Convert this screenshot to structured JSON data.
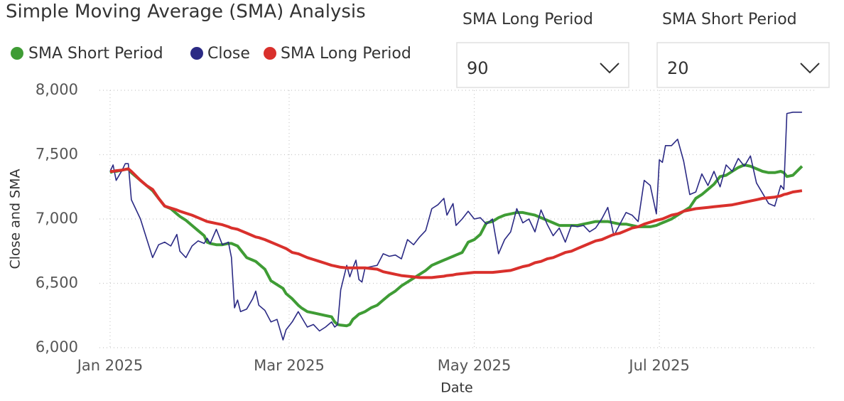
{
  "chart_data": {
    "type": "line",
    "title": "Simple Moving Average (SMA) Analysis",
    "x_label": "Date",
    "y_label": "Close and SMA",
    "x": [
      0,
      1,
      2,
      4,
      5,
      6,
      7,
      10,
      12,
      14,
      16,
      18,
      20,
      22,
      23,
      25,
      27,
      29,
      31,
      32,
      33,
      35,
      37,
      39,
      40,
      41,
      42,
      43,
      45,
      47,
      48,
      49,
      51,
      53,
      55,
      57,
      58,
      60,
      62,
      63,
      65,
      67,
      69,
      71,
      73,
      74,
      75,
      76,
      78,
      79,
      80,
      81,
      82,
      83,
      84,
      86,
      88,
      90,
      92,
      94,
      96,
      98,
      100,
      102,
      104,
      106,
      108,
      110,
      111,
      113,
      114,
      116,
      118,
      120,
      122,
      124,
      126,
      128,
      130,
      132,
      134,
      136,
      138,
      140,
      142,
      144,
      146,
      148,
      150,
      152,
      154,
      156,
      158,
      160,
      162,
      164,
      166,
      168,
      170,
      172,
      174,
      176,
      178,
      180,
      181,
      182,
      183,
      185,
      187,
      189,
      191,
      193,
      195,
      197,
      199,
      201,
      203,
      205,
      207,
      209,
      211,
      213,
      215,
      217,
      219,
      221,
      222,
      223,
      225,
      228
    ],
    "series": [
      {
        "name": "SMA Short Period",
        "color": "#3f9c35",
        "width": 4,
        "values": [
          7360,
          7370,
          7370,
          7380,
          7385,
          7390,
          7360,
          7300,
          7260,
          7220,
          7160,
          7100,
          7080,
          7040,
          7020,
          6990,
          6950,
          6910,
          6870,
          6820,
          6810,
          6800,
          6800,
          6810,
          6810,
          6800,
          6790,
          6760,
          6700,
          6680,
          6670,
          6650,
          6610,
          6520,
          6490,
          6460,
          6420,
          6380,
          6330,
          6310,
          6280,
          6270,
          6260,
          6250,
          6240,
          6200,
          6180,
          6175,
          6170,
          6180,
          6220,
          6240,
          6260,
          6270,
          6280,
          6310,
          6330,
          6370,
          6410,
          6440,
          6480,
          6510,
          6540,
          6570,
          6600,
          6640,
          6660,
          6680,
          6690,
          6710,
          6720,
          6740,
          6820,
          6840,
          6880,
          6970,
          6980,
          7010,
          7030,
          7040,
          7050,
          7050,
          7040,
          7030,
          7010,
          6990,
          6970,
          6950,
          6950,
          6950,
          6950,
          6960,
          6970,
          6980,
          6980,
          6980,
          6970,
          6960,
          6960,
          6950,
          6940,
          6940,
          6940,
          6950,
          6960,
          6970,
          6980,
          7000,
          7030,
          7060,
          7090,
          7160,
          7190,
          7230,
          7270,
          7330,
          7340,
          7370,
          7400,
          7420,
          7410,
          7390,
          7370,
          7360,
          7360,
          7370,
          7360,
          7330,
          7340,
          7410
        ]
      },
      {
        "name": "Close",
        "color": "#2b2a84",
        "width": 1.6,
        "values": [
          7370,
          7420,
          7300,
          7380,
          7430,
          7430,
          7150,
          7000,
          6850,
          6700,
          6800,
          6820,
          6790,
          6880,
          6750,
          6700,
          6790,
          6830,
          6810,
          6850,
          6810,
          6920,
          6800,
          6820,
          6700,
          6310,
          6370,
          6280,
          6300,
          6380,
          6440,
          6330,
          6290,
          6200,
          6220,
          6060,
          6140,
          6200,
          6280,
          6240,
          6160,
          6180,
          6130,
          6160,
          6200,
          6160,
          6180,
          6450,
          6640,
          6550,
          6620,
          6680,
          6530,
          6510,
          6620,
          6630,
          6640,
          6730,
          6710,
          6720,
          6690,
          6840,
          6800,
          6860,
          6910,
          7080,
          7110,
          7160,
          7030,
          7120,
          6950,
          7000,
          7060,
          7000,
          7010,
          6960,
          7000,
          6730,
          6840,
          6900,
          7080,
          6970,
          7000,
          6900,
          7070,
          6960,
          6870,
          6930,
          6820,
          6950,
          6940,
          6950,
          6900,
          6930,
          7000,
          7090,
          6870,
          6960,
          7050,
          7030,
          6980,
          7300,
          7260,
          7040,
          7460,
          7440,
          7570,
          7570,
          7620,
          7450,
          7190,
          7210,
          7350,
          7260,
          7370,
          7250,
          7420,
          7370,
          7470,
          7410,
          7490,
          7280,
          7200,
          7120,
          7100,
          7260,
          7230,
          7820,
          7830,
          7830
        ]
      },
      {
        "name": "SMA Long Period",
        "color": "#d9302c",
        "width": 4,
        "values": [
          7370,
          7370,
          7375,
          7380,
          7385,
          7390,
          7370,
          7300,
          7260,
          7230,
          7160,
          7100,
          7085,
          7070,
          7060,
          7045,
          7030,
          7010,
          6990,
          6980,
          6975,
          6965,
          6955,
          6940,
          6930,
          6925,
          6920,
          6910,
          6890,
          6870,
          6860,
          6855,
          6840,
          6820,
          6800,
          6780,
          6770,
          6740,
          6730,
          6720,
          6700,
          6685,
          6670,
          6655,
          6640,
          6635,
          6630,
          6625,
          6620,
          6620,
          6620,
          6620,
          6620,
          6620,
          6620,
          6615,
          6610,
          6590,
          6580,
          6570,
          6560,
          6555,
          6550,
          6545,
          6545,
          6545,
          6550,
          6555,
          6560,
          6565,
          6570,
          6575,
          6580,
          6585,
          6585,
          6585,
          6585,
          6590,
          6595,
          6600,
          6615,
          6630,
          6640,
          6660,
          6670,
          6690,
          6700,
          6720,
          6740,
          6750,
          6770,
          6790,
          6810,
          6830,
          6840,
          6860,
          6880,
          6890,
          6910,
          6930,
          6940,
          6960,
          6975,
          6990,
          6995,
          7000,
          7010,
          7030,
          7040,
          7060,
          7070,
          7080,
          7085,
          7090,
          7095,
          7100,
          7105,
          7110,
          7120,
          7130,
          7140,
          7150,
          7160,
          7165,
          7170,
          7180,
          7190,
          7195,
          7210,
          7220
        ]
      }
    ],
    "xlim": [
      -3.5,
      232
    ],
    "xticks": [
      {
        "value": 0,
        "label": "Jan 2025"
      },
      {
        "value": 59,
        "label": "Mar 2025"
      },
      {
        "value": 120,
        "label": "May 2025"
      },
      {
        "value": 181,
        "label": "Jul 2025"
      }
    ],
    "ylim": [
      6000,
      8000
    ],
    "yticks": [
      {
        "value": 6000,
        "label": "6,000"
      },
      {
        "value": 6500,
        "label": "6,500"
      },
      {
        "value": 7000,
        "label": "7,000"
      },
      {
        "value": 7500,
        "label": "7,500"
      },
      {
        "value": 8000,
        "label": "8,000"
      }
    ],
    "grid": true
  },
  "slicers": [
    {
      "title": "SMA Long Period",
      "value": "90"
    },
    {
      "title": "SMA Short Period",
      "value": "20"
    }
  ]
}
